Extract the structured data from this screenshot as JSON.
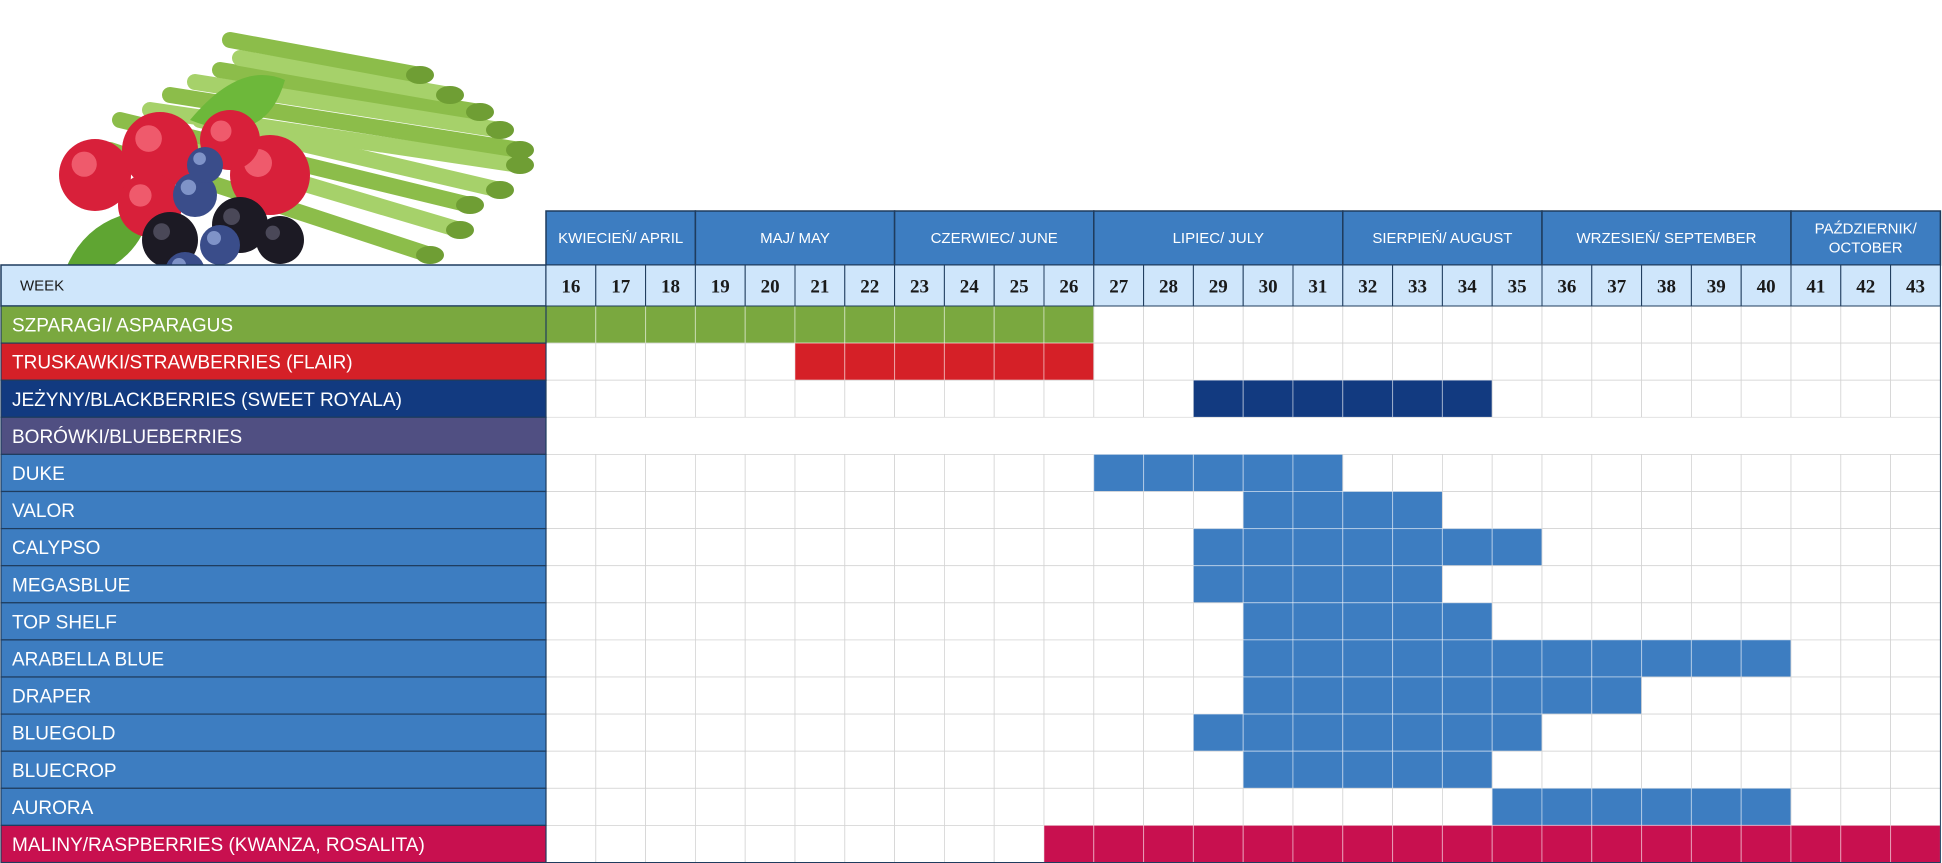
{
  "chart_data": {
    "type": "table",
    "week_label": "WEEK",
    "weeks": [
      16,
      17,
      18,
      19,
      20,
      21,
      22,
      23,
      24,
      25,
      26,
      27,
      28,
      29,
      30,
      31,
      32,
      33,
      34,
      35,
      36,
      37,
      38,
      39,
      40,
      41,
      42,
      43
    ],
    "months": [
      {
        "label": [
          "KWIECIEŃ/ APRIL"
        ],
        "start": 16,
        "end": 18
      },
      {
        "label": [
          "MAJ/ MAY"
        ],
        "start": 19,
        "end": 22
      },
      {
        "label": [
          "CZERWIEC/ JUNE"
        ],
        "start": 23,
        "end": 26
      },
      {
        "label": [
          "LIPIEC/ JULY"
        ],
        "start": 27,
        "end": 31
      },
      {
        "label": [
          "SIERPIEŃ/ AUGUST"
        ],
        "start": 32,
        "end": 35
      },
      {
        "label": [
          "WRZESIEŃ/ SEPTEMBER"
        ],
        "start": 36,
        "end": 40
      },
      {
        "label": [
          "PAŹDZIERNIK/",
          "OCTOBER"
        ],
        "start": 41,
        "end": 43
      }
    ],
    "rows": [
      {
        "label": "SZPARAGI/ ASPARAGUS",
        "label_color": "#7aa83f",
        "fill_color": "#7aa83f",
        "weeks": [
          16,
          26
        ]
      },
      {
        "label": "TRUSKAWKI/STRAWBERRIES (FLAIR)",
        "label_color": "#d52027",
        "fill_color": "#d52027",
        "weeks": [
          21,
          26
        ]
      },
      {
        "label": "JEŻYNY/BLACKBERRIES (SWEET ROYALA)",
        "label_color": "#123a80",
        "fill_color": "#123a80",
        "weeks": [
          29,
          34
        ]
      },
      {
        "label": "BORÓWKI/BLUEBERRIES",
        "label_color": "#504f82",
        "fill_color": "#504f82",
        "weeks": null,
        "header": true
      },
      {
        "label": "DUKE",
        "label_color": "#3d7dc1",
        "fill_color": "#3d7dc1",
        "weeks": [
          27,
          31
        ]
      },
      {
        "label": "VALOR",
        "label_color": "#3d7dc1",
        "fill_color": "#3d7dc1",
        "weeks": [
          30,
          33
        ]
      },
      {
        "label": "CALYPSO",
        "label_color": "#3d7dc1",
        "fill_color": "#3d7dc1",
        "weeks": [
          29,
          35
        ]
      },
      {
        "label": "MEGASBLUE",
        "label_color": "#3d7dc1",
        "fill_color": "#3d7dc1",
        "weeks": [
          29,
          33
        ]
      },
      {
        "label": "TOP SHELF",
        "label_color": "#3d7dc1",
        "fill_color": "#3d7dc1",
        "weeks": [
          30,
          34
        ]
      },
      {
        "label": "ARABELLA BLUE",
        "label_color": "#3d7dc1",
        "fill_color": "#3d7dc1",
        "weeks": [
          30,
          40
        ]
      },
      {
        "label": "DRAPER",
        "label_color": "#3d7dc1",
        "fill_color": "#3d7dc1",
        "weeks": [
          30,
          37
        ]
      },
      {
        "label": "BLUEGOLD",
        "label_color": "#3d7dc1",
        "fill_color": "#3d7dc1",
        "weeks": [
          29,
          35
        ]
      },
      {
        "label": "BLUECROP",
        "label_color": "#3d7dc1",
        "fill_color": "#3d7dc1",
        "weeks": [
          30,
          34
        ]
      },
      {
        "label": "AURORA",
        "label_color": "#3d7dc1",
        "fill_color": "#3d7dc1",
        "weeks": [
          35,
          40
        ]
      },
      {
        "label": "MALINY/RASPBERRIES (KWANZA, ROSALITA)",
        "label_color": "#c8104f",
        "fill_color": "#c8104f",
        "weeks": [
          26,
          43
        ]
      }
    ],
    "colors": {
      "month_header": "#3d7dc1",
      "week_header": "#cfe6fb",
      "grid": "#d4d4d4",
      "border": "#1f3c5e"
    }
  }
}
